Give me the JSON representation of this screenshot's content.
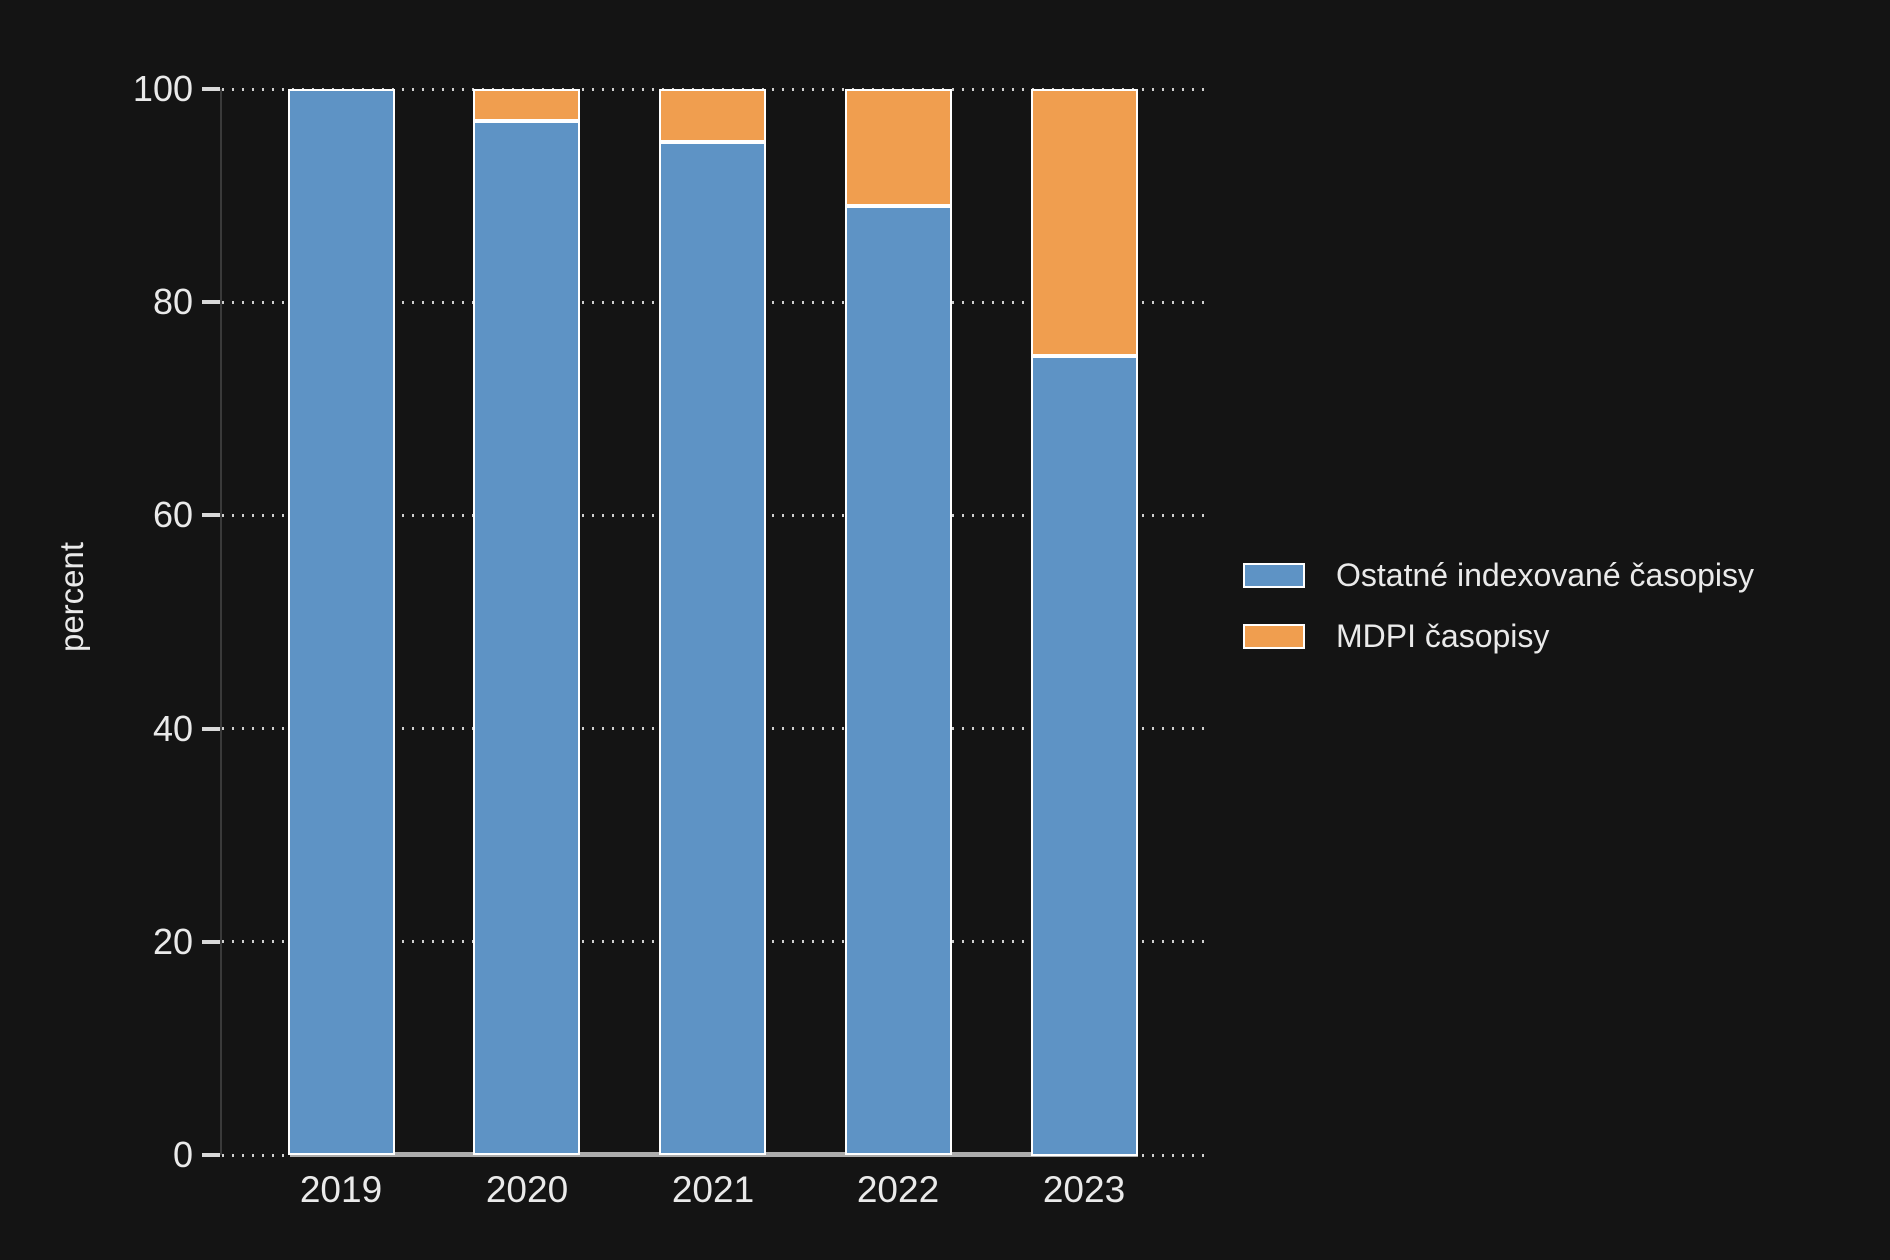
{
  "chart_data": {
    "type": "bar",
    "stacked": true,
    "categories": [
      "2019",
      "2020",
      "2021",
      "2022",
      "2023"
    ],
    "series": [
      {
        "name": "Ostatné indexované časopisy",
        "color": "#5E93C5",
        "values": [
          100,
          97,
          95,
          89,
          75
        ]
      },
      {
        "name": "MDPI časopisy",
        "color": "#F09E4F",
        "values": [
          0,
          3,
          5,
          11,
          25
        ]
      }
    ],
    "ylabel": "percent",
    "yticks": [
      0,
      20,
      40,
      60,
      80,
      100
    ],
    "ylim": [
      0,
      100
    ],
    "grid": "dotted-horizontal",
    "legend_position": "right",
    "colors": {
      "background": "#141414",
      "text": "#EAEAEA",
      "grid": "#CFCFCF",
      "axis_line": "#3A3A3A",
      "baseline": "#ADADAD",
      "bar_border": "#FFFFFF"
    }
  }
}
